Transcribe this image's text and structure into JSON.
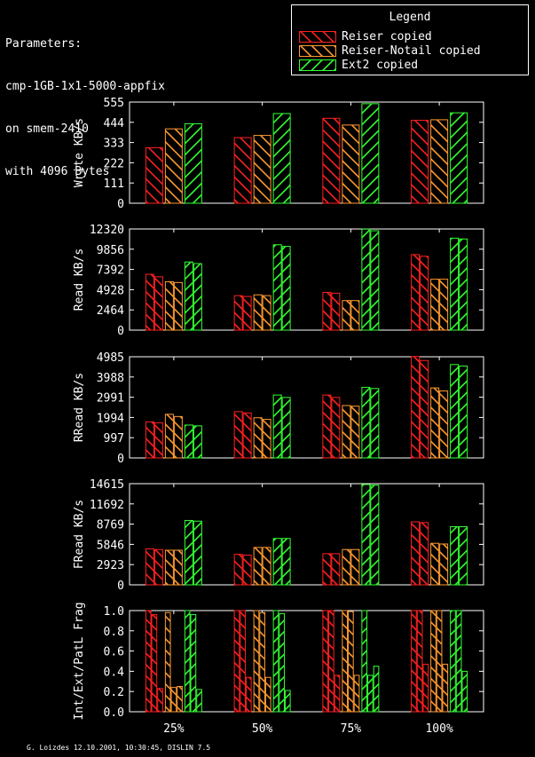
{
  "header": {
    "params": [
      "Parameters:",
      "cmp-1GB-1x1-5000-appfix",
      "on smem-2410",
      "with 4096 Bytes"
    ]
  },
  "legend": {
    "title": "Legend",
    "items": [
      {
        "label": "Reiser copied",
        "color": "#ff2020"
      },
      {
        "label": "Reiser-Notail copied",
        "color": "#ff9a30"
      },
      {
        "label": "Ext2 copied",
        "color": "#33ff33"
      }
    ]
  },
  "footer": "G. Loizdes 12.10.2001, 10:30:45, DISLIN 7.5",
  "chart_data": {
    "type": "bar",
    "categories": [
      "25%",
      "50%",
      "75%",
      "100%"
    ],
    "series_names": [
      "Reiser copied",
      "Reiser-Notail copied",
      "Ext2 copied"
    ],
    "panels": [
      {
        "ylabel": "Write KB/s",
        "ylim": [
          0,
          555
        ],
        "yticks": [
          0,
          111,
          222,
          333,
          444,
          555
        ],
        "bars_per_series": 1,
        "values": [
          [
            [
              305
            ],
            [
              408
            ],
            [
              436
            ]
          ],
          [
            [
              360
            ],
            [
              372
            ],
            [
              492
            ]
          ],
          [
            [
              466
            ],
            [
              429
            ],
            [
              546
            ]
          ],
          [
            [
              455
            ],
            [
              458
            ],
            [
              496
            ]
          ]
        ]
      },
      {
        "ylabel": "Read KB/s",
        "ylim": [
          0,
          12320
        ],
        "yticks": [
          0,
          2464,
          4928,
          7392,
          9856,
          12320
        ],
        "bars_per_series": 2,
        "values": [
          [
            [
              6800,
              6500
            ],
            [
              5900,
              5800
            ],
            [
              8300,
              8100
            ]
          ],
          [
            [
              4200,
              4100
            ],
            [
              4300,
              4200
            ],
            [
              10400,
              10200
            ]
          ],
          [
            [
              4600,
              4500
            ],
            [
              3600,
              3600
            ],
            [
              12300,
              12100
            ]
          ],
          [
            [
              9200,
              9000
            ],
            [
              6200,
              6200
            ],
            [
              11200,
              11100
            ]
          ]
        ]
      },
      {
        "ylabel": "RRead KB/s",
        "ylim": [
          0,
          4985
        ],
        "yticks": [
          0,
          997,
          1994,
          2991,
          3988,
          4985
        ],
        "bars_per_series": 2,
        "values": [
          [
            [
              1780,
              1730
            ],
            [
              2150,
              2040
            ],
            [
              1620,
              1580
            ]
          ],
          [
            [
              2280,
              2220
            ],
            [
              1980,
              1900
            ],
            [
              3100,
              2980
            ]
          ],
          [
            [
              3100,
              2980
            ],
            [
              2580,
              2550
            ],
            [
              3480,
              3420
            ]
          ],
          [
            [
              5000,
              4800
            ],
            [
              3450,
              3300
            ],
            [
              4600,
              4530
            ]
          ]
        ]
      },
      {
        "ylabel": "FRead KB/s",
        "ylim": [
          0,
          14615
        ],
        "yticks": [
          0,
          2923,
          5846,
          8769,
          11692,
          14615
        ],
        "bars_per_series": 2,
        "values": [
          [
            [
              5200,
              5100
            ],
            [
              5000,
              5000
            ],
            [
              9300,
              9200
            ]
          ],
          [
            [
              4400,
              4300
            ],
            [
              5400,
              5400
            ],
            [
              6700,
              6700
            ]
          ],
          [
            [
              4500,
              4500
            ],
            [
              5100,
              5100
            ],
            [
              14500,
              14400
            ]
          ],
          [
            [
              9100,
              9000
            ],
            [
              6000,
              5900
            ],
            [
              8400,
              8400
            ]
          ]
        ]
      },
      {
        "ylabel": "Int/Ext/PatL Frag",
        "ylim": [
          0,
          1.0
        ],
        "yticks": [
          "0.0",
          "0.2",
          "0.4",
          "0.6",
          "0.8",
          "1.0"
        ],
        "bars_per_series": 3,
        "values": [
          [
            [
              1.0,
              0.96,
              0.23
            ],
            [
              0.98,
              0.24,
              0.25
            ],
            [
              1.0,
              0.96,
              0.22
            ]
          ],
          [
            [
              1.0,
              1.0,
              0.34
            ],
            [
              1.0,
              0.98,
              0.34
            ],
            [
              1.0,
              0.97,
              0.21
            ]
          ],
          [
            [
              1.0,
              1.0,
              0.36
            ],
            [
              1.0,
              0.99,
              0.36
            ],
            [
              1.0,
              0.36,
              0.45
            ]
          ],
          [
            [
              1.0,
              1.0,
              0.47
            ],
            [
              1.0,
              1.0,
              0.47
            ],
            [
              1.0,
              1.0,
              0.4
            ]
          ]
        ]
      }
    ]
  }
}
